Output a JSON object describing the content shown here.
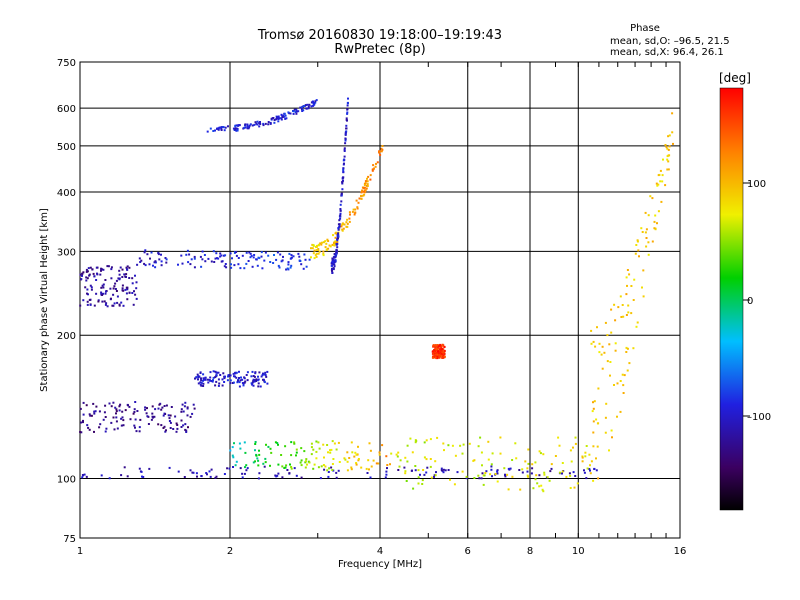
{
  "title": {
    "line1": "Tromsø 20160830 19:18:00–19:19:43",
    "line2": "RwPretec (8p)"
  },
  "stats": {
    "header": "Phase",
    "o_line": "mean, sd,O: –96.5, 21.5",
    "x_line": "mean, sd,X:  96.4, 26.1"
  },
  "colorbar": {
    "title": "[deg]",
    "ticks": [
      "100",
      "0",
      "–100"
    ]
  },
  "chart_data": {
    "type": "scatter",
    "xlabel": "Frequency [MHz]",
    "ylabel": "Stationary phase Virtual Height [km]",
    "x_scale": "log",
    "y_scale": "log",
    "xlim": [
      1,
      16
    ],
    "ylim": [
      75,
      750
    ],
    "x_ticks": [
      "1",
      "2",
      "4",
      "6",
      "8",
      "10",
      "16"
    ],
    "y_ticks": [
      "75",
      "100",
      "200",
      "300",
      "400",
      "500",
      "600",
      "750"
    ],
    "color_scale": "rainbow",
    "color_range_deg": [
      -180,
      180
    ],
    "traces": [
      {
        "name": "",
        "freq_range": [
          1.0,
          11.0
        ],
        "height": 103,
        "spread": 3,
        "phase": -110,
        "phase_trend": 0
      },
      {
        "name": "",
        "freq_range": [
          1.0,
          1.7
        ],
        "height": 135,
        "spread": 10,
        "phase": -125,
        "phase_trend": 0
      },
      {
        "name": "",
        "freq_range": [
          1.7,
          2.4
        ],
        "height": 162,
        "spread": 6,
        "phase": -100,
        "phase_trend": 0
      },
      {
        "name": "",
        "freq_range": [
          1.0,
          1.3
        ],
        "height": 255,
        "spread": 25,
        "phase": -120,
        "phase_trend": 0
      },
      {
        "name": "",
        "freq_range": [
          1.3,
          2.9
        ],
        "height_start": 290,
        "height_end": 285,
        "spread": 12,
        "phase": -105,
        "phase_trend": 25
      },
      {
        "name": "",
        "freq_range": [
          2.9,
          4.05
        ],
        "height_start": 300,
        "height_end": 500,
        "spread": 10,
        "phase": 80,
        "phase_trend": 50
      },
      {
        "name": "",
        "freq_range": [
          1.8,
          3.0
        ],
        "height_start": 540,
        "height_end": 620,
        "spread": 8,
        "phase": -95,
        "phase_trend": 0
      },
      {
        "name": "",
        "freq_range": [
          2.0,
          4.2
        ],
        "height": 112,
        "spread": 8,
        "phase": -20,
        "phase_trend": 140
      },
      {
        "name": "",
        "freq_range": [
          4.2,
          11.0
        ],
        "height": 108,
        "spread": 14,
        "phase": 60,
        "phase_trend": 20
      },
      {
        "name": "",
        "freq_range": [
          5.1,
          5.4
        ],
        "height": 185,
        "spread": 6,
        "phase": 160,
        "phase_trend": 0
      },
      {
        "name": "",
        "freq_range": [
          3.2,
          3.45
        ],
        "height_start": 280,
        "height_end": 620,
        "spread": 10,
        "phase": -100,
        "phase_trend": 0
      },
      {
        "name": "",
        "freq_range": [
          10.6,
          15.5
        ],
        "height_start": 150,
        "height_end": 550,
        "spread": 60,
        "phase": 90,
        "phase_trend": 0
      }
    ],
    "n_points": 1600,
    "grid": true
  }
}
